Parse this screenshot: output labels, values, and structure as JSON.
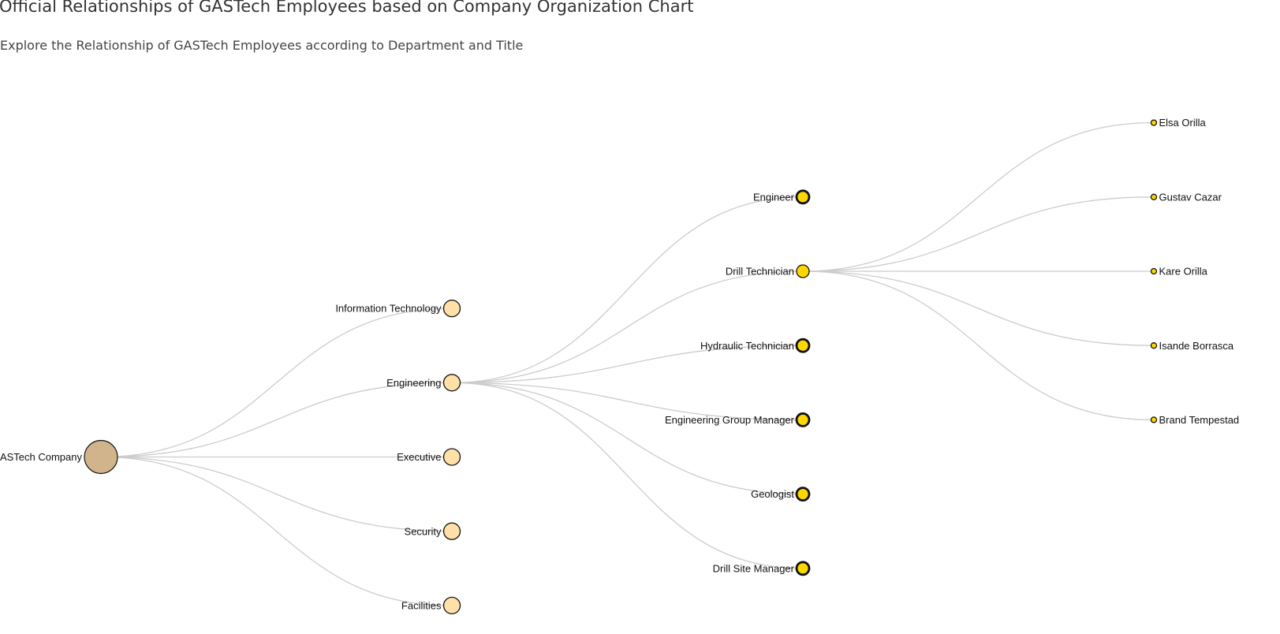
{
  "header": {
    "title": "Official Relationships of GASTech Employees based on Company Organization Chart",
    "subtitle": "Explore the Relationship of GASTech Employees according to Department and Title"
  },
  "colors": {
    "link": "#cccccc",
    "node_stroke": "#111111",
    "root_fill": "#d2b48c",
    "department_fill": "#ffe0a8",
    "title_fill": "#ffd700",
    "collapsed_fill": "#ffffff",
    "text": "#111111"
  },
  "tree": {
    "name": "GASTech Company",
    "key": "gastech-company",
    "expanded": true,
    "children": [
      {
        "name": "Information Technology",
        "key": "information-technology",
        "expanded": false,
        "children": []
      },
      {
        "name": "Engineering",
        "key": "engineering",
        "expanded": true,
        "children": [
          {
            "name": "Engineer",
            "key": "engineer",
            "expanded": false,
            "children": []
          },
          {
            "name": "Drill Technician",
            "key": "drill-technician",
            "expanded": true,
            "children": [
              {
                "name": "Elsa Orilla",
                "key": "elsa-orilla",
                "leaf": true
              },
              {
                "name": "Gustav Cazar",
                "key": "gustav-cazar",
                "leaf": true
              },
              {
                "name": "Kare Orilla",
                "key": "kare-orilla",
                "leaf": true
              },
              {
                "name": "Isande Borrasca",
                "key": "isande-borrasca",
                "leaf": true
              },
              {
                "name": "Brand Tempestad",
                "key": "brand-tempestad",
                "leaf": true
              }
            ]
          },
          {
            "name": "Hydraulic Technician",
            "key": "hydraulic-technician",
            "expanded": false,
            "children": []
          },
          {
            "name": "Engineering Group Manager",
            "key": "engineering-group-manager",
            "expanded": false,
            "children": []
          },
          {
            "name": "Geologist",
            "key": "geologist",
            "expanded": false,
            "children": []
          },
          {
            "name": "Drill Site Manager",
            "key": "drill-site-manager",
            "expanded": false,
            "children": []
          }
        ]
      },
      {
        "name": "Executive",
        "key": "executive",
        "expanded": false,
        "children": []
      },
      {
        "name": "Security",
        "key": "security",
        "expanded": false,
        "children": []
      },
      {
        "name": "Facilities",
        "key": "facilities",
        "expanded": false,
        "children": []
      }
    ]
  }
}
